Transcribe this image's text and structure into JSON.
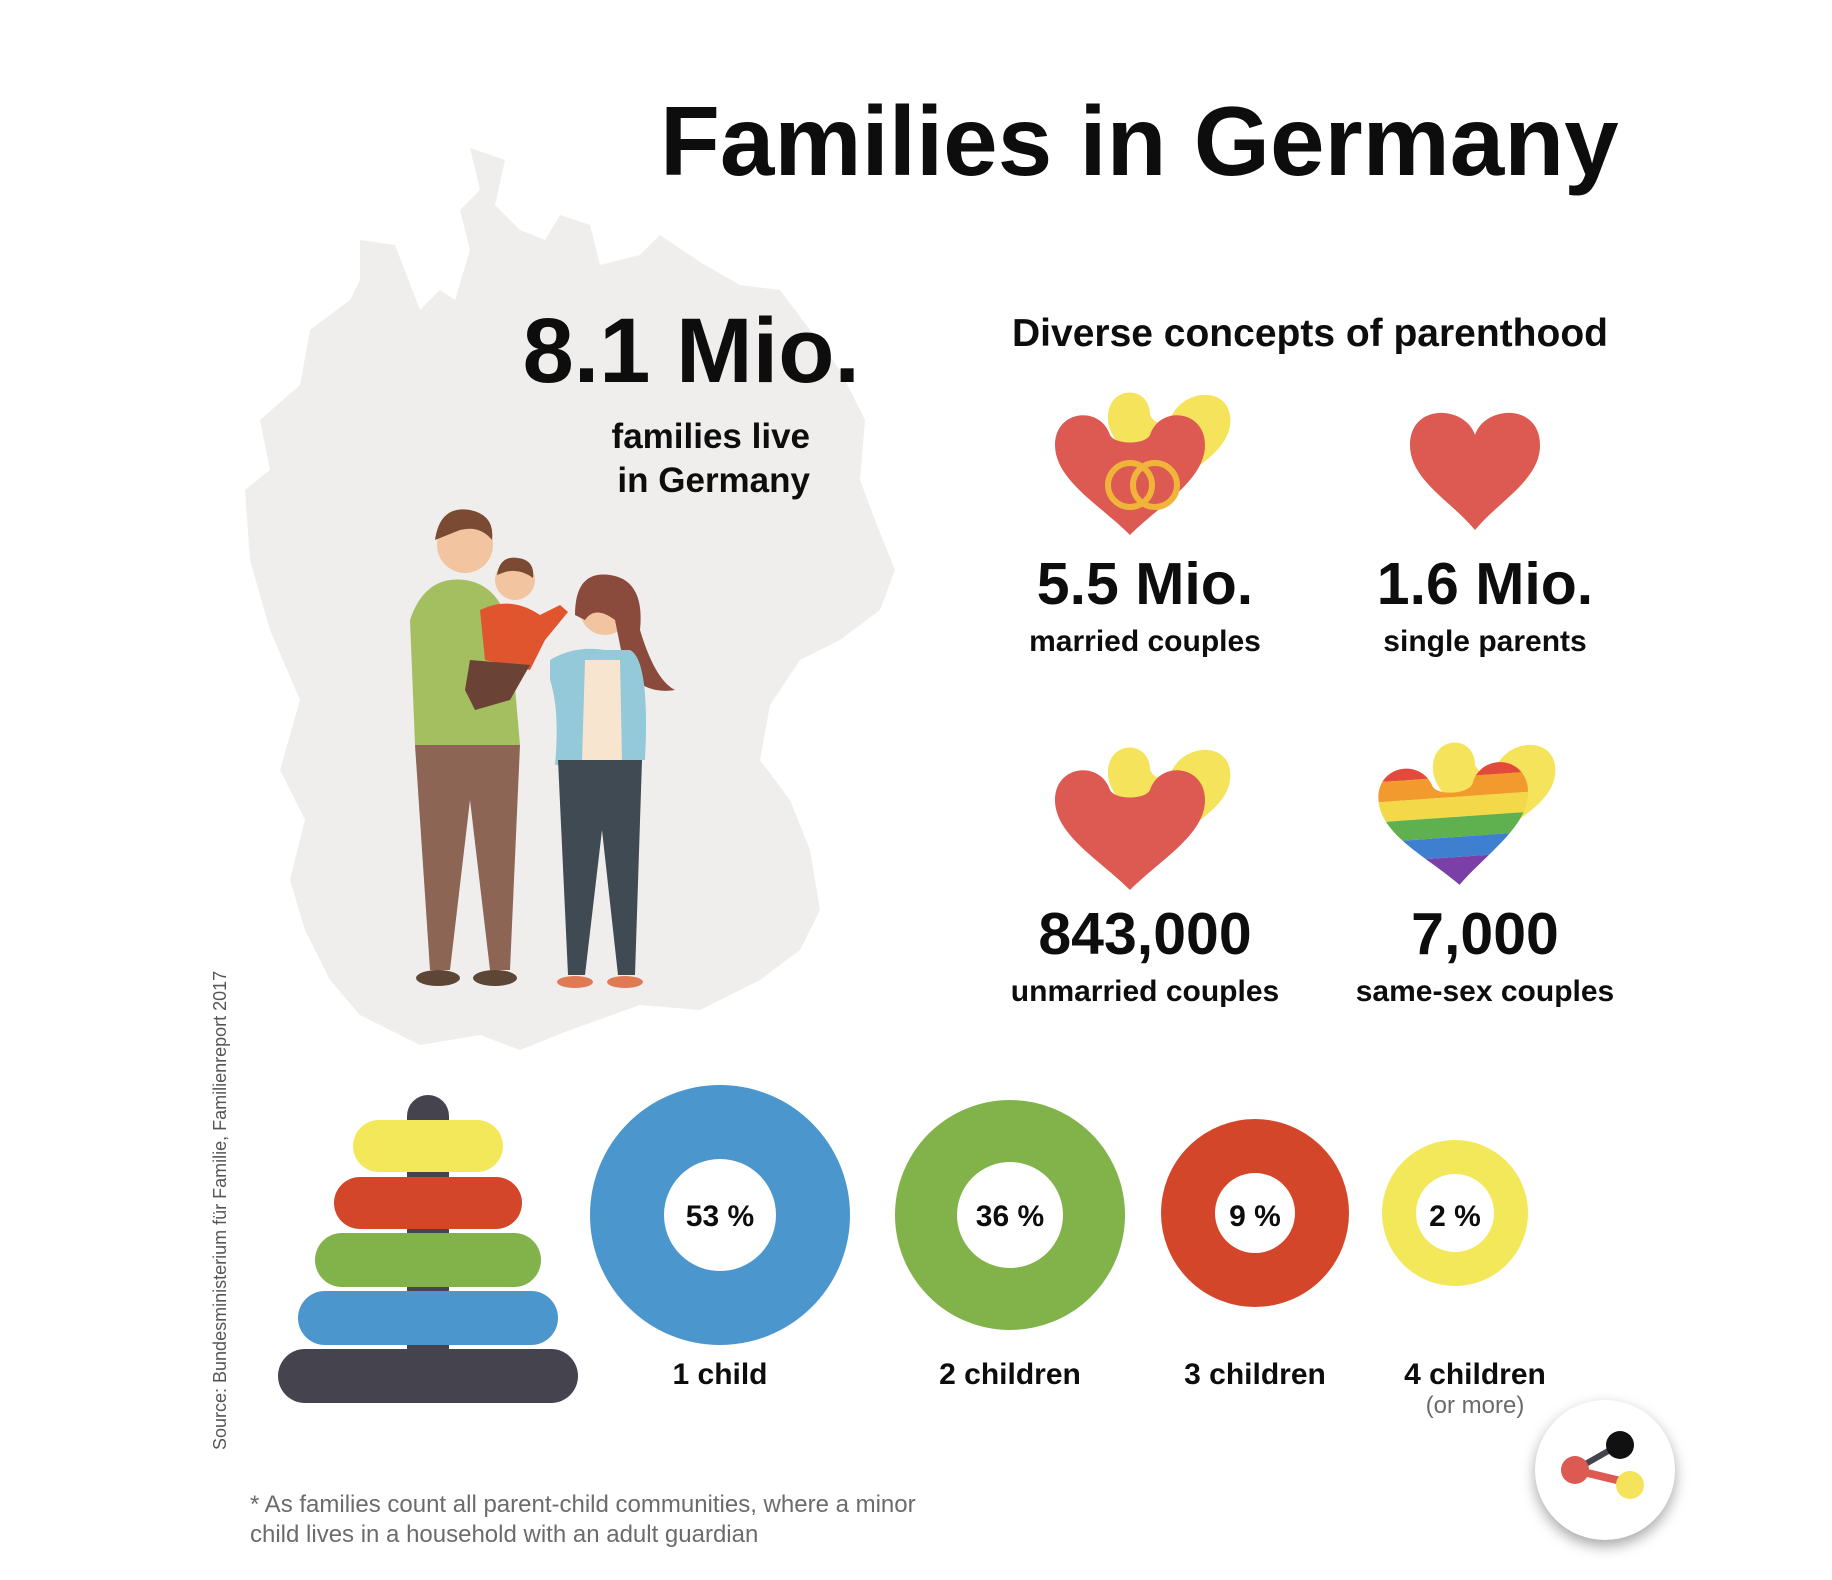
{
  "title": "Families in Germany",
  "headline": {
    "value": "8.1 Mio.",
    "label_line1": "families live",
    "label_line2": "in Germany"
  },
  "section_title": "Diverse concepts of parenthood",
  "stats": [
    {
      "value": "5.5 Mio.",
      "label": "married couples",
      "icon": "rings-hearts-icon"
    },
    {
      "value": "1.6 Mio.",
      "label": "single parents",
      "icon": "heart-icon"
    },
    {
      "value": "843,000",
      "label": "unmarried couples",
      "icon": "double-heart-icon"
    },
    {
      "value": "7,000",
      "label": "same-sex couples",
      "icon": "rainbow-heart-icon"
    }
  ],
  "children_shares": [
    {
      "percent_label": "53 %",
      "label": "1 child",
      "color": "#4b96cc"
    },
    {
      "percent_label": "36 %",
      "label": "2 children",
      "color": "#82b34a"
    },
    {
      "percent_label": "9 %",
      "label": "3 children",
      "color": "#d4462a"
    },
    {
      "percent_label": "2 %",
      "label": "4 children",
      "sublabel": "(or more)",
      "color": "#f3e75a"
    }
  ],
  "source": "Source: Bundesministerium für Familie, Familienreport 2017",
  "footnote_line1": "* As families count all parent-child communities, where a minor",
  "footnote_line2": "child lives in a household with an adult guardian",
  "colors": {
    "map": "#efeeed",
    "heart_red": "#dc5a52",
    "heart_yellow": "#f5e35b",
    "ring": "#f0b43a"
  }
}
